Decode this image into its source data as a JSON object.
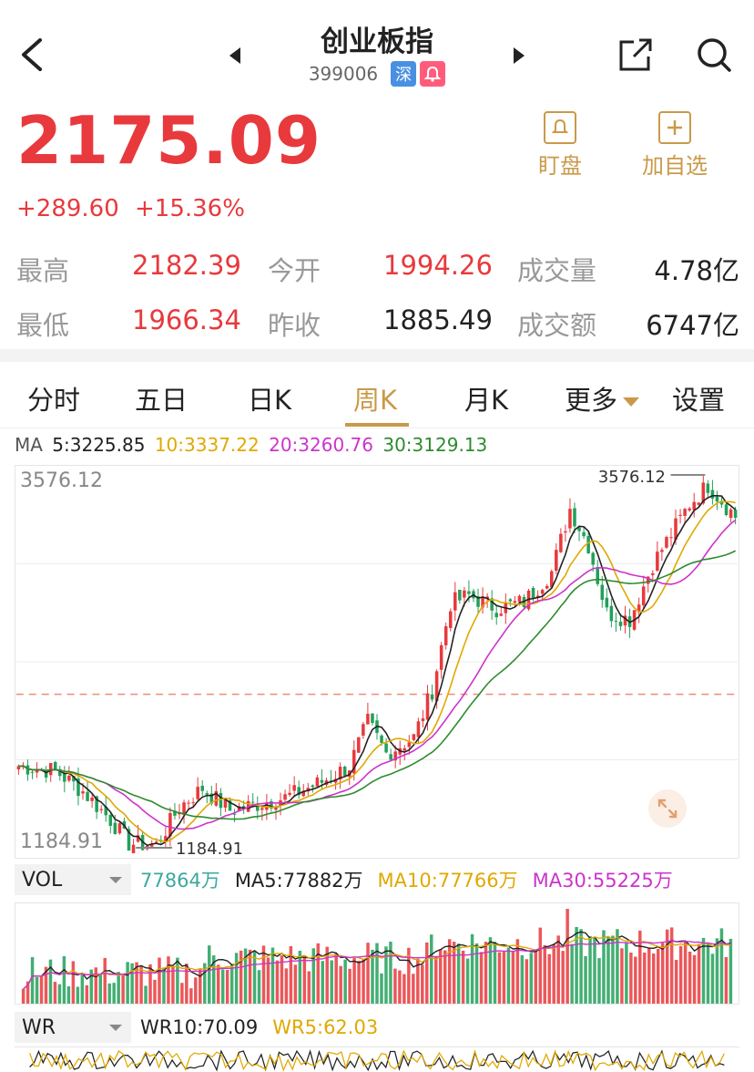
{
  "header": {
    "title": "创业板指",
    "code": "399006",
    "market_tag": "深"
  },
  "quote": {
    "price": "2175.09",
    "change": "+289.60",
    "change_pct": "+15.36%",
    "up_color": "#e8393d"
  },
  "actions": {
    "watch_label": "盯盘",
    "add_label": "加自选"
  },
  "stats": {
    "high_label": "最高",
    "high": "2182.39",
    "open_label": "今开",
    "open": "1994.26",
    "vol_label": "成交量",
    "vol": "4.78亿",
    "low_label": "最低",
    "low": "1966.34",
    "prev_label": "昨收",
    "prev": "1885.49",
    "amount_label": "成交额",
    "amount": "6747亿"
  },
  "tabs": [
    "分时",
    "五日",
    "日K",
    "周K",
    "月K",
    "更多",
    "设置"
  ],
  "active_tab": "周K",
  "ma": {
    "label": "MA",
    "ma5": "5:3225.85",
    "ma10": "10:3337.22",
    "ma20": "20:3260.76",
    "ma30": "30:3129.13"
  },
  "chart_data": {
    "type": "candlestick",
    "y_max_label": "3576.12",
    "y_min_label": "1184.91",
    "high_annotation": "3576.12",
    "low_annotation": "1184.91",
    "ylim": [
      1184.91,
      3576.12
    ],
    "reference_line": 2175.09,
    "series": [
      {
        "name": "MA5",
        "color": "#222222"
      },
      {
        "name": "MA10",
        "color": "#e0a800"
      },
      {
        "name": "MA20",
        "color": "#cc33cc"
      },
      {
        "name": "MA30",
        "color": "#2e8b2e"
      }
    ]
  },
  "volume": {
    "indicator": "VOL",
    "value": "77864万",
    "ma5": "MA5:77882万",
    "ma10": "MA10:77766万",
    "ma30": "MA30:55225万"
  },
  "wr": {
    "indicator": "WR",
    "wr10": "WR10:70.09",
    "wr5": "WR5:62.03"
  },
  "colors": {
    "accent": "#c99a4a",
    "up": "#e8393d",
    "down": "#22a05a"
  }
}
